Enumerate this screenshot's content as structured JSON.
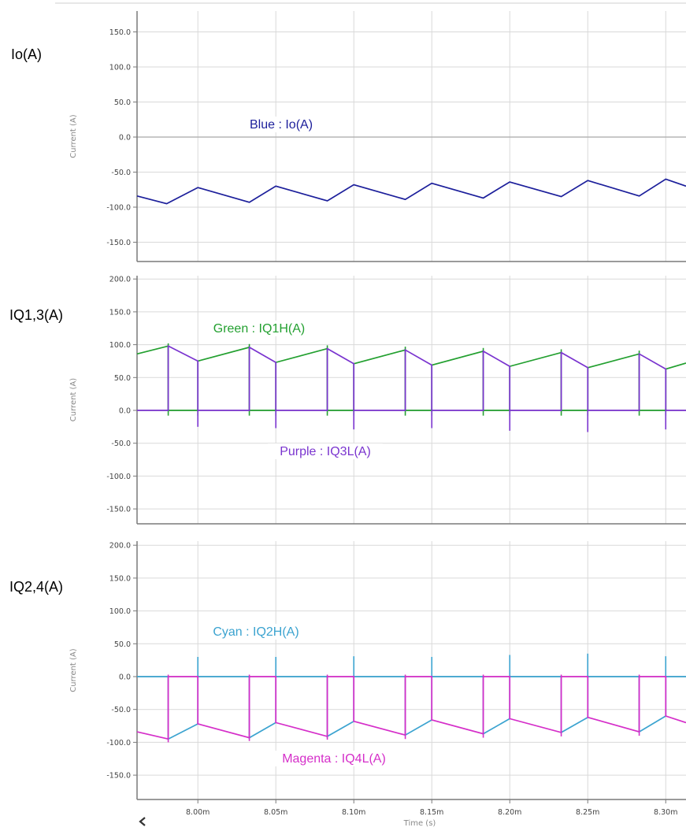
{
  "colors": {
    "blue": "#1c1f9b",
    "green": "#23a030",
    "purple": "#7a34cf",
    "cyan": "#3ba3d0",
    "magenta": "#d52ec9",
    "grid": "#d9d9d9",
    "axis": "#7a7a7a"
  },
  "x_axis": {
    "label": "Time (s)",
    "ticks": [
      "8.00m",
      "8.05m",
      "8.10m",
      "8.15m",
      "8.20m",
      "8.25m",
      "8.30m"
    ],
    "range": [
      "7.961m",
      "8.313m"
    ]
  },
  "nav": {
    "scroll_left_icon": "chevron-left-icon"
  },
  "chart_data": [
    {
      "type": "line",
      "panel_label": "Io(A)",
      "ylabel": "Current (A)",
      "ylim": [
        -180,
        180
      ],
      "yticks": [
        "150.0",
        "100.0",
        "50.0",
        "0.0",
        "-50.0",
        "-100.0",
        "-150.0"
      ],
      "grid": true,
      "annotations": [
        "Blue : Io(A)"
      ],
      "series": [
        {
          "color": "blue",
          "x_unit": "ms",
          "x": [
            7.961,
            7.98,
            8.0,
            8.033,
            8.05,
            8.083,
            8.1,
            8.133,
            8.15,
            8.183,
            8.2,
            8.233,
            8.25,
            8.283,
            8.3,
            8.313
          ],
          "y": [
            -84,
            -95,
            -72,
            -93,
            -70,
            -91,
            -68,
            -89,
            -66,
            -87,
            -64,
            -85,
            -62,
            -84,
            -60,
            -70
          ]
        }
      ]
    },
    {
      "type": "line",
      "panel_label": "IQ1,3(A)",
      "ylabel": "Current (A)",
      "ylim": [
        -190,
        200
      ],
      "yticks": [
        "200.0",
        "150.0",
        "100.0",
        "50.0",
        "0.0",
        "-50.0",
        "-100.0",
        "-150.0"
      ],
      "grid": true,
      "annotations": [
        "Green : IQ1H(A)",
        "Purple : IQ3L(A)"
      ],
      "series": [
        {
          "color": "green",
          "x_unit": "ms",
          "x": [
            7.961,
            7.981,
            7.981,
            8.0,
            8.0,
            8.033,
            8.033,
            8.05,
            8.05,
            8.083,
            8.083,
            8.1,
            8.1,
            8.133,
            8.133,
            8.15,
            8.15,
            8.183,
            8.183,
            8.2,
            8.2,
            8.233,
            8.233,
            8.25,
            8.25,
            8.283,
            8.283,
            8.3,
            8.3,
            8.313
          ],
          "y": [
            86,
            98,
            0,
            0,
            75,
            96,
            0,
            0,
            73,
            94,
            0,
            0,
            71,
            92,
            0,
            0,
            69,
            90,
            0,
            0,
            67,
            88,
            0,
            0,
            65,
            86,
            0,
            0,
            63,
            72
          ]
        },
        {
          "color": "purple",
          "x_unit": "ms",
          "x": [
            7.961,
            7.981,
            7.981,
            8.0,
            8.0,
            8.033,
            8.033,
            8.05,
            8.05,
            8.083,
            8.083,
            8.1,
            8.1,
            8.133,
            8.133,
            8.15,
            8.15,
            8.183,
            8.183,
            8.2,
            8.2,
            8.233,
            8.233,
            8.25,
            8.25,
            8.283,
            8.283,
            8.3,
            8.3,
            8.313
          ],
          "y": [
            0,
            0,
            98,
            75,
            0,
            0,
            96,
            73,
            0,
            0,
            94,
            71,
            0,
            0,
            92,
            69,
            0,
            0,
            90,
            67,
            0,
            0,
            88,
            65,
            0,
            0,
            86,
            63,
            0,
            0
          ]
        }
      ],
      "spikes": [
        {
          "color": "green",
          "x": [
            7.981,
            8.0,
            8.033,
            8.05,
            8.083,
            8.1,
            8.133,
            8.15,
            8.183,
            8.2,
            8.233,
            8.25,
            8.283,
            8.3
          ],
          "ymin": -8,
          "ymax": [
            98,
            0,
            96,
            0,
            94,
            0,
            92,
            0,
            90,
            0,
            88,
            0,
            86,
            0
          ],
          "ytop": [
            102,
            3,
            101,
            3,
            99,
            3,
            97,
            3,
            95,
            3,
            93,
            3,
            91,
            3
          ]
        },
        {
          "color": "purple",
          "x": [
            8.0,
            8.05,
            8.1,
            8.15,
            8.2,
            8.25,
            8.3
          ],
          "ymin": [
            -25,
            -27,
            -29,
            -27,
            -31,
            -33,
            -29
          ]
        }
      ]
    },
    {
      "type": "line",
      "panel_label": "IQ2,4(A)",
      "ylabel": "Current (A)",
      "ylim": [
        -190,
        200
      ],
      "yticks": [
        "200.0",
        "150.0",
        "100.0",
        "50.0",
        "0.0",
        "-50.0",
        "-100.0",
        "-150.0"
      ],
      "grid": true,
      "annotations": [
        "Cyan : IQ2H(A)",
        "Magenta : IQ4L(A)"
      ],
      "series": [
        {
          "color": "cyan",
          "x_unit": "ms",
          "x": [
            7.961,
            7.981,
            7.981,
            8.0,
            8.0,
            8.033,
            8.033,
            8.05,
            8.05,
            8.083,
            8.083,
            8.1,
            8.1,
            8.133,
            8.133,
            8.15,
            8.15,
            8.183,
            8.183,
            8.2,
            8.2,
            8.233,
            8.233,
            8.25,
            8.25,
            8.283,
            8.283,
            8.3,
            8.3,
            8.313
          ],
          "y": [
            0,
            0,
            -95,
            -72,
            0,
            0,
            -93,
            -70,
            0,
            0,
            -91,
            -68,
            0,
            0,
            -89,
            -66,
            0,
            0,
            -87,
            -64,
            0,
            0,
            -85,
            -62,
            0,
            0,
            -84,
            -60,
            0,
            0
          ]
        },
        {
          "color": "magenta",
          "x_unit": "ms",
          "x": [
            7.961,
            7.981,
            7.981,
            8.0,
            8.0,
            8.033,
            8.033,
            8.05,
            8.05,
            8.083,
            8.083,
            8.1,
            8.1,
            8.133,
            8.133,
            8.15,
            8.15,
            8.183,
            8.183,
            8.2,
            8.2,
            8.233,
            8.233,
            8.25,
            8.25,
            8.283,
            8.283,
            8.3,
            8.3,
            8.313
          ],
          "y": [
            -84,
            -95,
            0,
            0,
            -72,
            -93,
            0,
            0,
            -70,
            -91,
            0,
            0,
            -68,
            -89,
            0,
            0,
            -66,
            -87,
            0,
            0,
            -64,
            -85,
            0,
            0,
            -62,
            -84,
            0,
            0,
            -60,
            -70
          ]
        }
      ],
      "spikes": [
        {
          "color": "cyan",
          "x": [
            8.0,
            8.05,
            8.1,
            8.15,
            8.2,
            8.25,
            8.3
          ],
          "ymax": [
            30,
            30,
            31,
            30,
            33,
            35,
            31
          ]
        },
        {
          "color": "magenta",
          "x": [
            7.981,
            8.033,
            8.083,
            8.133,
            8.183,
            8.233,
            8.283
          ],
          "ymin": [
            -100,
            -98,
            -96,
            -95,
            -93,
            -91,
            -90
          ],
          "ytop": [
            3,
            3,
            3,
            3,
            3,
            3,
            3
          ]
        }
      ]
    }
  ]
}
